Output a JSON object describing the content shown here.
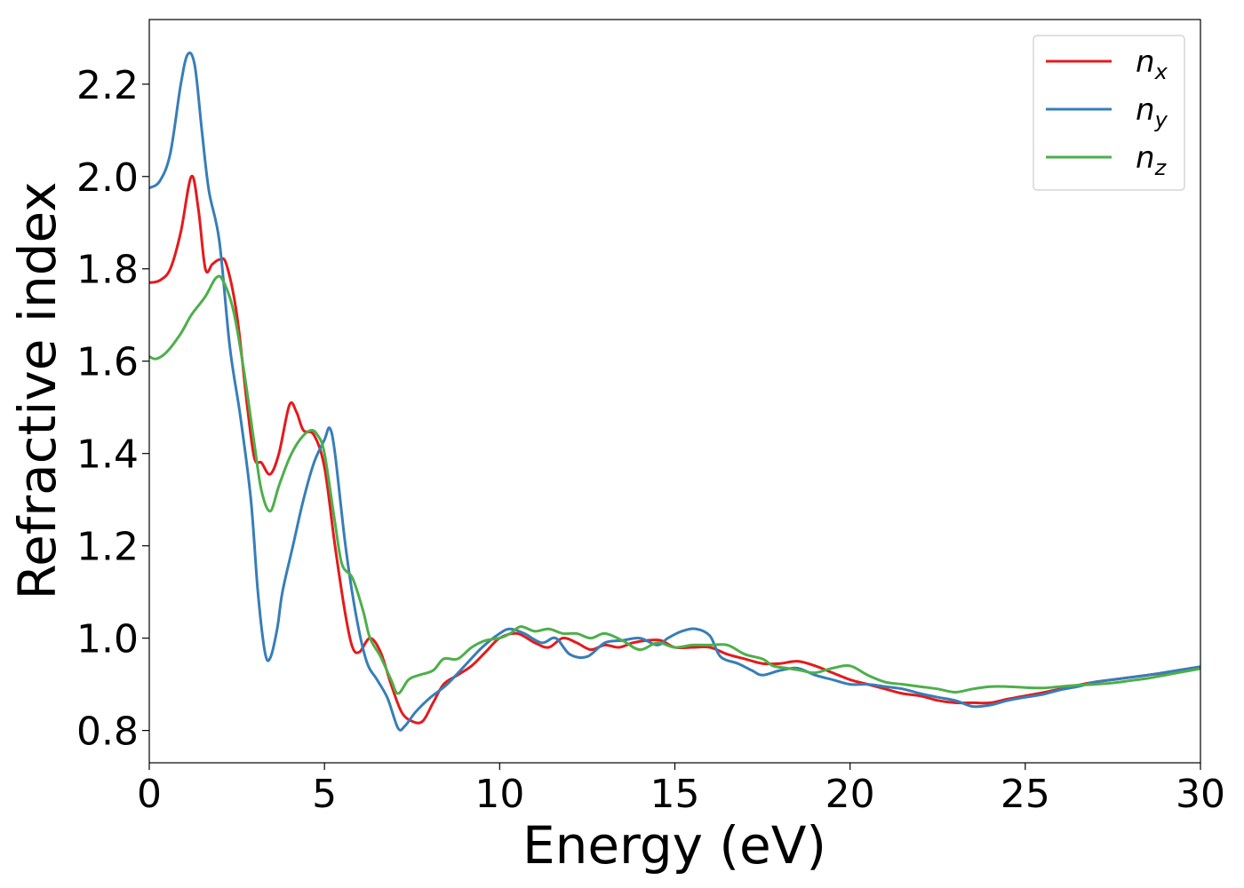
{
  "chart_data": {
    "type": "line",
    "title": "",
    "xlabel": "Energy (eV)",
    "ylabel": "Refractive index",
    "xlim": [
      0,
      30
    ],
    "ylim": [
      0.73,
      2.34
    ],
    "xticks": [
      0,
      5,
      10,
      15,
      20,
      25,
      30
    ],
    "xtick_labels": [
      "0",
      "5",
      "10",
      "15",
      "20",
      "25",
      "30"
    ],
    "yticks": [
      0.8,
      1.0,
      1.2,
      1.4,
      1.6,
      1.8,
      2.0,
      2.2
    ],
    "ytick_labels": [
      "0.8",
      "1.0",
      "1.2",
      "1.4",
      "1.6",
      "1.8",
      "2.0",
      "2.2"
    ],
    "grid": false,
    "legend_position": "top-right",
    "series": [
      {
        "name": "n",
        "subscript": "x",
        "color": "#e41a1c",
        "points": [
          [
            0,
            1.77
          ],
          [
            0.3,
            1.775
          ],
          [
            0.6,
            1.8
          ],
          [
            0.9,
            1.88
          ],
          [
            1.2,
            2.0
          ],
          [
            1.4,
            1.93
          ],
          [
            1.6,
            1.8
          ],
          [
            1.8,
            1.81
          ],
          [
            2.0,
            1.82
          ],
          [
            2.2,
            1.81
          ],
          [
            2.5,
            1.7
          ],
          [
            2.8,
            1.5
          ],
          [
            3.0,
            1.39
          ],
          [
            3.2,
            1.38
          ],
          [
            3.45,
            1.355
          ],
          [
            3.7,
            1.4
          ],
          [
            4.0,
            1.505
          ],
          [
            4.2,
            1.49
          ],
          [
            4.4,
            1.45
          ],
          [
            4.7,
            1.44
          ],
          [
            5.0,
            1.37
          ],
          [
            5.3,
            1.2
          ],
          [
            5.6,
            1.05
          ],
          [
            5.8,
            0.98
          ],
          [
            6.0,
            0.97
          ],
          [
            6.3,
            1.0
          ],
          [
            6.6,
            0.97
          ],
          [
            6.9,
            0.9
          ],
          [
            7.2,
            0.84
          ],
          [
            7.5,
            0.82
          ],
          [
            7.8,
            0.82
          ],
          [
            8.1,
            0.86
          ],
          [
            8.4,
            0.9
          ],
          [
            8.8,
            0.92
          ],
          [
            9.2,
            0.94
          ],
          [
            9.6,
            0.97
          ],
          [
            10.0,
            1.0
          ],
          [
            10.5,
            1.01
          ],
          [
            11.0,
            0.99
          ],
          [
            11.4,
            0.98
          ],
          [
            11.8,
            1.0
          ],
          [
            12.2,
            0.99
          ],
          [
            12.6,
            0.975
          ],
          [
            13.0,
            0.985
          ],
          [
            13.4,
            0.98
          ],
          [
            13.8,
            0.99
          ],
          [
            14.2,
            0.995
          ],
          [
            14.6,
            0.995
          ],
          [
            15.0,
            0.98
          ],
          [
            15.5,
            0.98
          ],
          [
            16.0,
            0.98
          ],
          [
            16.5,
            0.965
          ],
          [
            17.0,
            0.955
          ],
          [
            17.5,
            0.945
          ],
          [
            18.0,
            0.945
          ],
          [
            18.5,
            0.95
          ],
          [
            19.0,
            0.94
          ],
          [
            19.5,
            0.925
          ],
          [
            20.0,
            0.91
          ],
          [
            20.5,
            0.9
          ],
          [
            21.0,
            0.89
          ],
          [
            21.5,
            0.88
          ],
          [
            22.0,
            0.875
          ],
          [
            22.5,
            0.865
          ],
          [
            23.0,
            0.86
          ],
          [
            23.5,
            0.86
          ],
          [
            24.0,
            0.86
          ],
          [
            24.5,
            0.868
          ],
          [
            25.0,
            0.875
          ],
          [
            25.5,
            0.882
          ],
          [
            26.0,
            0.89
          ],
          [
            26.5,
            0.898
          ],
          [
            27.0,
            0.905
          ],
          [
            27.5,
            0.91
          ],
          [
            28.0,
            0.915
          ],
          [
            28.5,
            0.92
          ],
          [
            29.0,
            0.925
          ],
          [
            29.5,
            0.932
          ],
          [
            30.0,
            0.938
          ]
        ]
      },
      {
        "name": "n",
        "subscript": "y",
        "color": "#377eb8",
        "points": [
          [
            0,
            1.975
          ],
          [
            0.3,
            1.99
          ],
          [
            0.6,
            2.05
          ],
          [
            0.9,
            2.2
          ],
          [
            1.1,
            2.265
          ],
          [
            1.3,
            2.24
          ],
          [
            1.5,
            2.1
          ],
          [
            1.7,
            1.97
          ],
          [
            2.0,
            1.86
          ],
          [
            2.3,
            1.63
          ],
          [
            2.6,
            1.48
          ],
          [
            2.9,
            1.3
          ],
          [
            3.1,
            1.1
          ],
          [
            3.3,
            0.97
          ],
          [
            3.45,
            0.957
          ],
          [
            3.65,
            1.02
          ],
          [
            3.8,
            1.1
          ],
          [
            4.1,
            1.2
          ],
          [
            4.4,
            1.3
          ],
          [
            4.7,
            1.38
          ],
          [
            5.0,
            1.43
          ],
          [
            5.15,
            1.455
          ],
          [
            5.3,
            1.4
          ],
          [
            5.6,
            1.2
          ],
          [
            5.9,
            1.05
          ],
          [
            6.2,
            0.95
          ],
          [
            6.5,
            0.91
          ],
          [
            6.8,
            0.87
          ],
          [
            7.1,
            0.805
          ],
          [
            7.3,
            0.81
          ],
          [
            7.6,
            0.84
          ],
          [
            8.0,
            0.87
          ],
          [
            8.5,
            0.9
          ],
          [
            9.0,
            0.94
          ],
          [
            9.5,
            0.98
          ],
          [
            10.0,
            1.01
          ],
          [
            10.3,
            1.02
          ],
          [
            10.7,
            1.01
          ],
          [
            11.2,
            0.99
          ],
          [
            11.6,
            1.0
          ],
          [
            12.0,
            0.965
          ],
          [
            12.5,
            0.96
          ],
          [
            13.0,
            0.99
          ],
          [
            13.5,
            0.995
          ],
          [
            14.0,
            1.0
          ],
          [
            14.5,
            0.985
          ],
          [
            14.8,
            1.0
          ],
          [
            15.2,
            1.015
          ],
          [
            15.6,
            1.02
          ],
          [
            16.0,
            1.005
          ],
          [
            16.3,
            0.96
          ],
          [
            16.8,
            0.945
          ],
          [
            17.2,
            0.93
          ],
          [
            17.5,
            0.92
          ],
          [
            18.0,
            0.93
          ],
          [
            18.5,
            0.935
          ],
          [
            19.0,
            0.92
          ],
          [
            19.5,
            0.91
          ],
          [
            20.0,
            0.9
          ],
          [
            20.5,
            0.9
          ],
          [
            21.0,
            0.895
          ],
          [
            21.5,
            0.89
          ],
          [
            22.0,
            0.88
          ],
          [
            22.5,
            0.872
          ],
          [
            23.0,
            0.865
          ],
          [
            23.5,
            0.852
          ],
          [
            24.0,
            0.855
          ],
          [
            24.5,
            0.865
          ],
          [
            25.0,
            0.872
          ],
          [
            25.5,
            0.878
          ],
          [
            26.0,
            0.888
          ],
          [
            26.5,
            0.895
          ],
          [
            27.0,
            0.905
          ],
          [
            27.5,
            0.91
          ],
          [
            28.0,
            0.915
          ],
          [
            28.5,
            0.92
          ],
          [
            29.0,
            0.926
          ],
          [
            29.5,
            0.932
          ],
          [
            30.0,
            0.938
          ]
        ]
      },
      {
        "name": "n",
        "subscript": "z",
        "color": "#4daf4a",
        "points": [
          [
            0,
            1.61
          ],
          [
            0.2,
            1.605
          ],
          [
            0.5,
            1.62
          ],
          [
            0.9,
            1.66
          ],
          [
            1.2,
            1.7
          ],
          [
            1.6,
            1.74
          ],
          [
            1.9,
            1.78
          ],
          [
            2.1,
            1.775
          ],
          [
            2.4,
            1.71
          ],
          [
            2.7,
            1.58
          ],
          [
            3.0,
            1.42
          ],
          [
            3.2,
            1.32
          ],
          [
            3.45,
            1.275
          ],
          [
            3.7,
            1.33
          ],
          [
            4.0,
            1.39
          ],
          [
            4.3,
            1.43
          ],
          [
            4.6,
            1.45
          ],
          [
            4.8,
            1.44
          ],
          [
            5.0,
            1.4
          ],
          [
            5.3,
            1.25
          ],
          [
            5.5,
            1.16
          ],
          [
            5.8,
            1.13
          ],
          [
            6.1,
            1.06
          ],
          [
            6.3,
            1.0
          ],
          [
            6.6,
            0.96
          ],
          [
            6.9,
            0.91
          ],
          [
            7.1,
            0.88
          ],
          [
            7.4,
            0.91
          ],
          [
            7.7,
            0.92
          ],
          [
            8.1,
            0.93
          ],
          [
            8.4,
            0.955
          ],
          [
            8.8,
            0.955
          ],
          [
            9.2,
            0.98
          ],
          [
            9.6,
            0.995
          ],
          [
            10.0,
            1.0
          ],
          [
            10.3,
            1.01
          ],
          [
            10.6,
            1.025
          ],
          [
            11.0,
            1.015
          ],
          [
            11.4,
            1.02
          ],
          [
            11.8,
            1.01
          ],
          [
            12.2,
            1.01
          ],
          [
            12.6,
            1.0
          ],
          [
            13.0,
            1.01
          ],
          [
            13.5,
            0.995
          ],
          [
            14.0,
            0.975
          ],
          [
            14.5,
            0.99
          ],
          [
            15.0,
            0.98
          ],
          [
            15.5,
            0.985
          ],
          [
            16.0,
            0.985
          ],
          [
            16.5,
            0.985
          ],
          [
            17.0,
            0.965
          ],
          [
            17.5,
            0.955
          ],
          [
            17.8,
            0.94
          ],
          [
            18.2,
            0.935
          ],
          [
            18.6,
            0.93
          ],
          [
            19.0,
            0.925
          ],
          [
            19.5,
            0.935
          ],
          [
            20.0,
            0.94
          ],
          [
            20.5,
            0.92
          ],
          [
            21.0,
            0.905
          ],
          [
            21.5,
            0.9
          ],
          [
            22.0,
            0.895
          ],
          [
            22.5,
            0.89
          ],
          [
            23.0,
            0.883
          ],
          [
            23.5,
            0.89
          ],
          [
            24.0,
            0.895
          ],
          [
            24.5,
            0.895
          ],
          [
            25.0,
            0.893
          ],
          [
            25.5,
            0.892
          ],
          [
            26.0,
            0.895
          ],
          [
            26.5,
            0.898
          ],
          [
            27.0,
            0.9
          ],
          [
            27.5,
            0.903
          ],
          [
            28.0,
            0.908
          ],
          [
            28.5,
            0.913
          ],
          [
            29.0,
            0.92
          ],
          [
            29.5,
            0.927
          ],
          [
            30.0,
            0.934
          ]
        ]
      }
    ]
  }
}
